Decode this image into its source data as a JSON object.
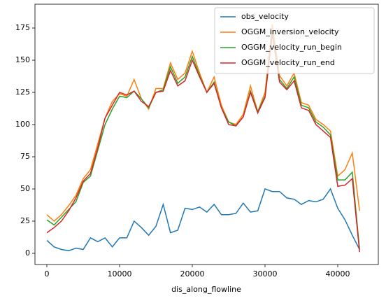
{
  "chart_data": {
    "type": "line",
    "xlabel": "dis_along_flowline",
    "x": [
      0,
      1000,
      2000,
      3000,
      4000,
      5000,
      6000,
      7000,
      8000,
      9000,
      10000,
      11000,
      12000,
      13000,
      14000,
      15000,
      16000,
      17000,
      18000,
      19000,
      20000,
      21000,
      22000,
      23000,
      24000,
      25000,
      26000,
      27000,
      28000,
      29000,
      30000,
      31000,
      32000,
      33000,
      34000,
      35000,
      36000,
      37000,
      38000,
      39000,
      40000,
      41000,
      42000,
      43000
    ],
    "series": [
      {
        "name": "obs_velocity",
        "color": "#1f77b4",
        "values": [
          10,
          5,
          3,
          2,
          4,
          3,
          12,
          9,
          12,
          5,
          12,
          12,
          25,
          20,
          14,
          21,
          38,
          16,
          18,
          35,
          34,
          36,
          32,
          38,
          30,
          30,
          31,
          39,
          32,
          33,
          50,
          48,
          48,
          43,
          42,
          38,
          41,
          40,
          42,
          50,
          35,
          26,
          14,
          3
        ]
      },
      {
        "name": "OGGM_inversion_velocity",
        "color": "#ff7f0e",
        "values": [
          30,
          25,
          30,
          37,
          45,
          58,
          65,
          85,
          105,
          118,
          124,
          122,
          135,
          120,
          112,
          128,
          128,
          148,
          135,
          140,
          157,
          140,
          125,
          137,
          115,
          102,
          100,
          108,
          130,
          110,
          125,
          178,
          138,
          130,
          140,
          117,
          115,
          104,
          100,
          95,
          60,
          65,
          78,
          33
        ]
      },
      {
        "name": "OGGM_velocity_run_begin",
        "color": "#2ca02c",
        "values": [
          26,
          22,
          28,
          34,
          40,
          55,
          60,
          80,
          100,
          112,
          122,
          121,
          126,
          120,
          113,
          125,
          127,
          145,
          132,
          137,
          153,
          138,
          125,
          133,
          113,
          102,
          99,
          106,
          126,
          110,
          122,
          173,
          135,
          128,
          137,
          115,
          113,
          102,
          98,
          92,
          57,
          57,
          63,
          3
        ]
      },
      {
        "name": "OGGM_velocity_run_end",
        "color": "#d62728",
        "values": [
          16,
          20,
          25,
          33,
          43,
          56,
          62,
          82,
          105,
          115,
          125,
          123,
          126,
          118,
          114,
          125,
          126,
          142,
          130,
          134,
          150,
          137,
          125,
          132,
          113,
          100,
          99,
          106,
          125,
          109,
          121,
          170,
          133,
          127,
          134,
          113,
          111,
          100,
          95,
          90,
          52,
          53,
          58,
          1
        ]
      }
    ],
    "xlim": [
      -1635,
      45577
    ],
    "xticks": [
      0,
      10000,
      20000,
      30000,
      40000
    ],
    "ylim": [
      -8.7,
      193.5
    ],
    "yticks": [
      0,
      25,
      50,
      75,
      100,
      125,
      150,
      175
    ],
    "legend": "upper right"
  }
}
